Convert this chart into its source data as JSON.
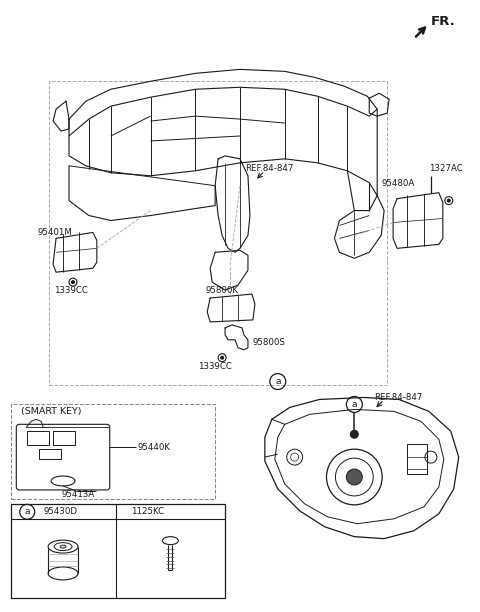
{
  "bg_color": "#ffffff",
  "line_color": "#1a1a1a",
  "fig_width": 4.8,
  "fig_height": 6.12,
  "dpi": 100,
  "labels": {
    "FR": "FR.",
    "ref84_847_1": "REF.84-847",
    "ref84_847_2": "REF.84-847",
    "95480A": "95480A",
    "1327AC": "1327AC",
    "95401M": "95401M",
    "1339CC_1": "1339CC",
    "95800K": "95800K",
    "95800S": "95800S",
    "1339CC_2": "1339CC",
    "smart_key": "(SMART KEY)",
    "95440K": "95440K",
    "95413A": "95413A",
    "a_label": "a",
    "95430D": "95430D",
    "1125KC": "1125KC"
  },
  "frame_color": "#2a2a2a",
  "dash_color": "#999999"
}
